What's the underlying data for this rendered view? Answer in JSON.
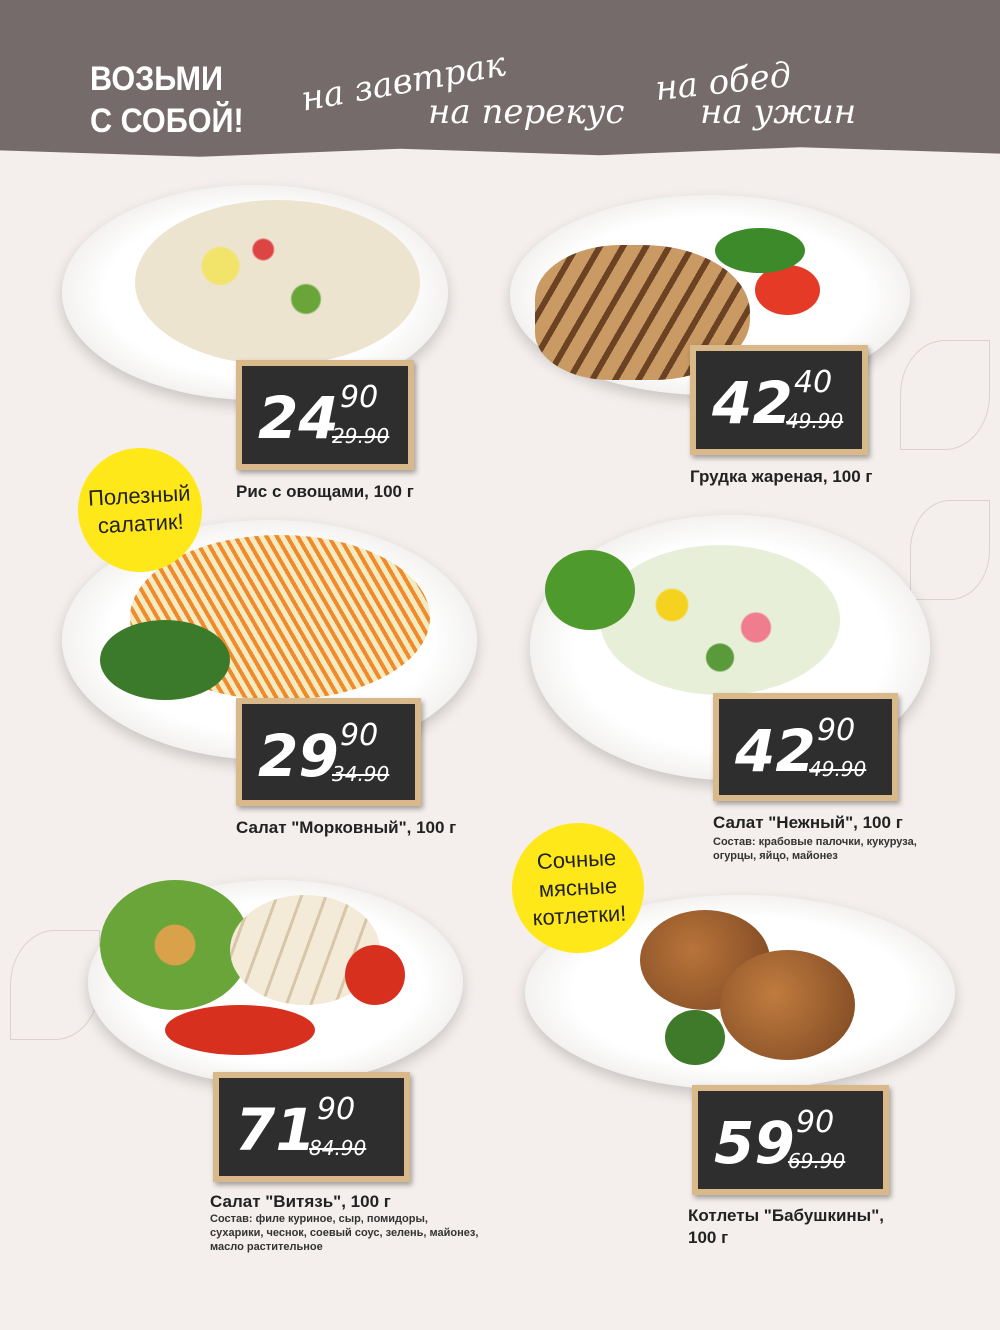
{
  "header": {
    "title_line1": "ВОЗЬМИ",
    "title_line2": "С СОБОЙ!",
    "phrases": [
      "на завтрак",
      "на перекус",
      "на обед",
      "на ужин"
    ]
  },
  "colors": {
    "header": "#766b6b",
    "background": "#f4efec",
    "badge": "#ffe81a",
    "chalkboard": "#2e2e2e",
    "frame": "#d9b98a"
  },
  "badges": [
    "Полезный салатик!",
    "Сочные мясные котлетки!"
  ],
  "products": [
    {
      "name": "Рис с овощами, 100 г",
      "price_main": "24",
      "price_cents": "90",
      "old_price": "29.90"
    },
    {
      "name": "Грудка жареная, 100 г",
      "price_main": "42",
      "price_cents": "40",
      "old_price": "49.90"
    },
    {
      "name": "Салат \"Морковный\", 100 г",
      "price_main": "29",
      "price_cents": "90",
      "old_price": "34.90"
    },
    {
      "name": "Салат \"Нежный\", 100 г",
      "composition": "Состав: крабовые палочки, кукуруза, огурцы, яйцо, майонез",
      "price_main": "42",
      "price_cents": "90",
      "old_price": "49.90"
    },
    {
      "name": "Салат \"Витязь\", 100 г",
      "composition": "Состав: филе куриное, сыр, помидоры, сухарики, чеснок, соевый соус, зелень, майонез, масло растительное",
      "price_main": "71",
      "price_cents": "90",
      "old_price": "84.90"
    },
    {
      "name": "Котлеты \"Бабушкины\", 100 г",
      "price_main": "59",
      "price_cents": "90",
      "old_price": "69.90"
    }
  ]
}
